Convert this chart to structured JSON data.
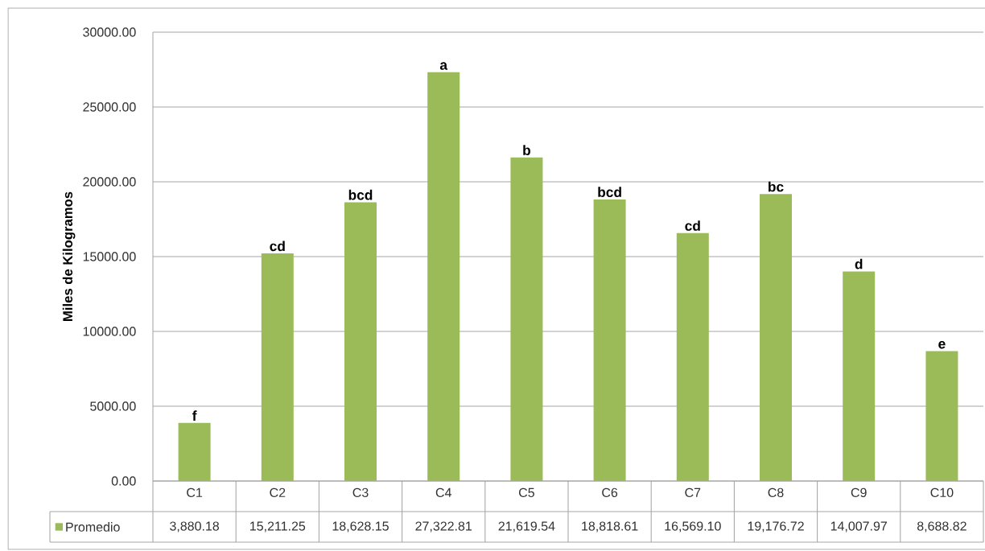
{
  "chart_data": {
    "type": "bar",
    "ylabel": "Miles de Kilogramos",
    "categories": [
      "C1",
      "C2",
      "C3",
      "C4",
      "C5",
      "C6",
      "C7",
      "C8",
      "C9",
      "C10"
    ],
    "series": [
      {
        "name": "Promedio",
        "color": "#9bbb59",
        "values": [
          3880.18,
          15211.25,
          18628.15,
          27322.81,
          21619.54,
          18818.61,
          16569.1,
          19176.72,
          14007.97,
          8688.82
        ],
        "value_labels": [
          "3,880.18",
          "15,211.25",
          "18,628.15",
          "27,322.81",
          "21,619.54",
          "18,818.61",
          "16,569.10",
          "19,176.72",
          "14,007.97",
          "8,688.82"
        ]
      }
    ],
    "ylim": [
      0,
      30000
    ],
    "yticks": [
      {
        "value": 0,
        "label": "0.00"
      },
      {
        "value": 5000,
        "label": "5000.00"
      },
      {
        "value": 10000,
        "label": "10000.00"
      },
      {
        "value": 15000,
        "label": "15000.00"
      },
      {
        "value": 20000,
        "label": "20000.00"
      },
      {
        "value": 25000,
        "label": "25000.00"
      },
      {
        "value": 30000,
        "label": "30000.00"
      }
    ],
    "grid": "y",
    "legend": "bottom",
    "annotations": [
      {
        "text": "f",
        "x": "C1",
        "y": 3880.18
      },
      {
        "text": "cd",
        "x": "C2",
        "y": 15211.25
      },
      {
        "text": "bcd",
        "x": "C3",
        "y": 18628.15
      },
      {
        "text": "a",
        "x": "C4",
        "y": 27322.81
      },
      {
        "text": "b",
        "x": "C5",
        "y": 21619.54
      },
      {
        "text": "bcd",
        "x": "C6",
        "y": 18818.61
      },
      {
        "text": "cd",
        "x": "C7",
        "y": 16569.1
      },
      {
        "text": "bc",
        "x": "C8",
        "y": 19176.72
      },
      {
        "text": "d",
        "x": "C9",
        "y": 14007.97
      },
      {
        "text": "e",
        "x": "C10",
        "y": 8688.82
      }
    ]
  }
}
